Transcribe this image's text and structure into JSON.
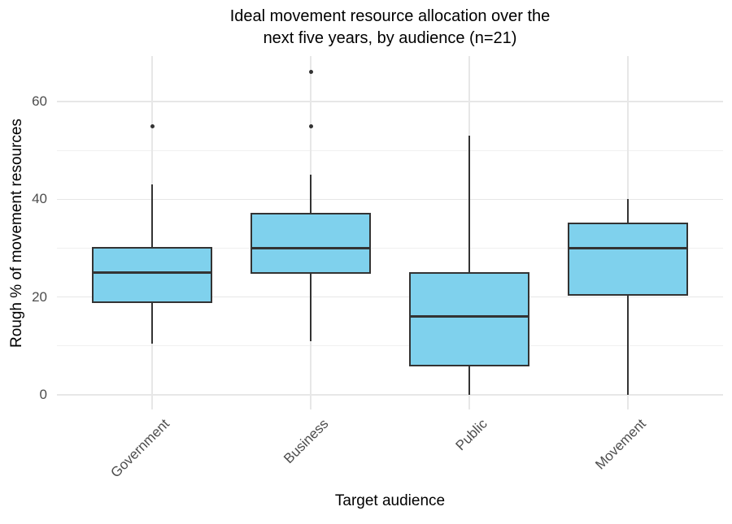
{
  "chart_data": {
    "type": "boxplot",
    "title": "Ideal movement resource allocation over the next five years, by audience (n=21)",
    "title_lines": [
      "Ideal movement resource allocation over the",
      "next five years, by audience (n=21)"
    ],
    "xlabel": "Target audience",
    "ylabel": "Rough % of movement resources",
    "categories": [
      "Government",
      "Business",
      "Public",
      "Movement"
    ],
    "boxes": [
      {
        "category": "Government",
        "whisker_low": 10.5,
        "q1": 19,
        "median": 25,
        "q3": 30,
        "whisker_high": 43,
        "outliers": [
          55
        ]
      },
      {
        "category": "Business",
        "whisker_low": 11,
        "q1": 25,
        "median": 30,
        "q3": 37,
        "whisker_high": 45,
        "outliers": [
          55,
          66
        ]
      },
      {
        "category": "Public",
        "whisker_low": 0,
        "q1": 6,
        "median": 16,
        "q3": 25,
        "whisker_high": 53,
        "outliers": []
      },
      {
        "category": "Movement",
        "whisker_low": 0,
        "q1": 20.5,
        "median": 30,
        "q3": 35,
        "whisker_high": 40,
        "outliers": []
      }
    ],
    "y_axis": {
      "ticks": [
        0,
        20,
        40,
        60
      ],
      "minor_ticks": [
        10,
        30,
        50
      ],
      "range": [
        -3,
        69.3
      ]
    },
    "x_axis": {
      "label_angle_deg": 45
    },
    "grid": {
      "horizontal": "major+minor",
      "vertical": "major-at-categories"
    },
    "legend": "none",
    "colors": {
      "box_fill": "#7FD1ED",
      "box_stroke": "#333333",
      "median": "#333333",
      "whisker": "#333333",
      "outlier": "#333333",
      "grid_major": "#E7E7E7",
      "grid_minor": "#F0F0F0",
      "axis_text": "#4D4D4D",
      "title_text": "#000000",
      "background": "#FFFFFF"
    }
  }
}
